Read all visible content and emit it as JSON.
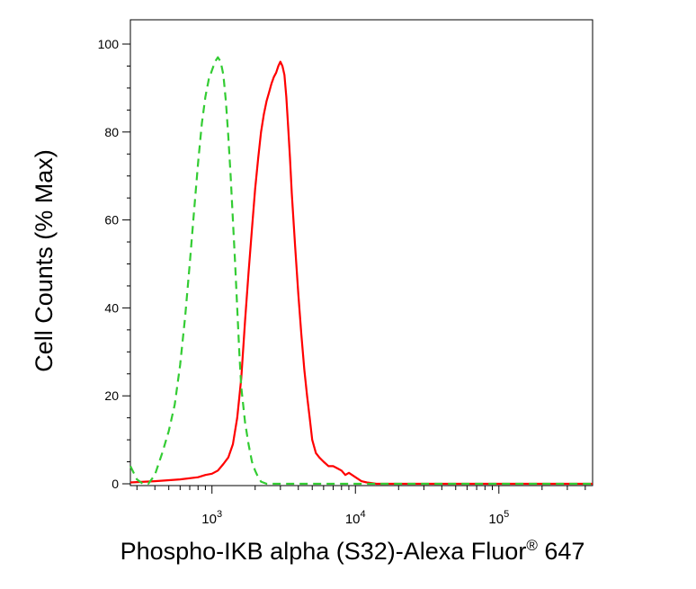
{
  "chart_data": {
    "type": "line",
    "xlabel": "Phospho-IKB alpha (S32)-Alexa Fluor",
    "xlabel_superscript": "®",
    "xlabel_suffix": " 647",
    "ylabel": "Cell Counts (% Max)",
    "x_scale": "log",
    "xlim": [
      270,
      450000
    ],
    "ylim": [
      0,
      100
    ],
    "yticks": [
      0,
      20,
      40,
      60,
      80,
      100
    ],
    "xticks": [
      {
        "value": 1000,
        "base": "10",
        "exp": "3"
      },
      {
        "value": 10000,
        "base": "10",
        "exp": "4"
      },
      {
        "value": 100000,
        "base": "10",
        "exp": "5"
      }
    ],
    "grid": false,
    "legend": "none",
    "series": [
      {
        "color": "#ff0000",
        "style": "solid",
        "x": [
          270,
          400,
          600,
          800,
          900,
          1000,
          1100,
          1200,
          1300,
          1400,
          1500,
          1600,
          1700,
          1800,
          1900,
          2000,
          2100,
          2200,
          2300,
          2400,
          2500,
          2600,
          2700,
          2800,
          2900,
          3000,
          3100,
          3200,
          3300,
          3400,
          3500,
          3600,
          3800,
          4000,
          4200,
          4400,
          4600,
          4800,
          5000,
          5300,
          5600,
          6000,
          6500,
          7000,
          7500,
          8000,
          8500,
          9000,
          10000,
          11000,
          12000,
          14000,
          20000,
          50000,
          100000,
          200000,
          450000
        ],
        "y": [
          0.3,
          0.6,
          1,
          1.5,
          2,
          2.3,
          3,
          4.5,
          6,
          9,
          15,
          24,
          37,
          48,
          58,
          67,
          74,
          80,
          84,
          87,
          89,
          91,
          92.5,
          93.5,
          95,
          96,
          95,
          93,
          88,
          81,
          74,
          66,
          54,
          43,
          34,
          26,
          20,
          15,
          10,
          7,
          6,
          5,
          4,
          4,
          3.5,
          3,
          2,
          2.5,
          1.5,
          0.6,
          0.3,
          0,
          0,
          0,
          0,
          0,
          0
        ]
      },
      {
        "color": "#33cc33",
        "style": "dashed",
        "x": [
          270,
          300,
          330,
          360,
          400,
          450,
          500,
          550,
          600,
          650,
          700,
          750,
          800,
          850,
          900,
          950,
          1000,
          1050,
          1100,
          1150,
          1200,
          1250,
          1300,
          1350,
          1400,
          1450,
          1500,
          1550,
          1600,
          1700,
          1800,
          1900,
          2000,
          2100,
          2200,
          2400,
          2700,
          3000,
          4000,
          8000,
          20000,
          100000,
          450000
        ],
        "y": [
          4,
          1,
          0,
          0,
          2,
          7,
          12,
          18,
          27,
          38,
          50,
          62,
          73,
          82,
          88,
          92,
          94,
          96,
          97,
          96,
          93,
          87,
          79,
          70,
          60,
          50,
          40,
          30,
          22,
          14,
          9,
          5,
          3,
          1.5,
          0.5,
          0,
          0,
          0,
          0,
          0,
          0,
          0,
          0
        ]
      }
    ]
  }
}
